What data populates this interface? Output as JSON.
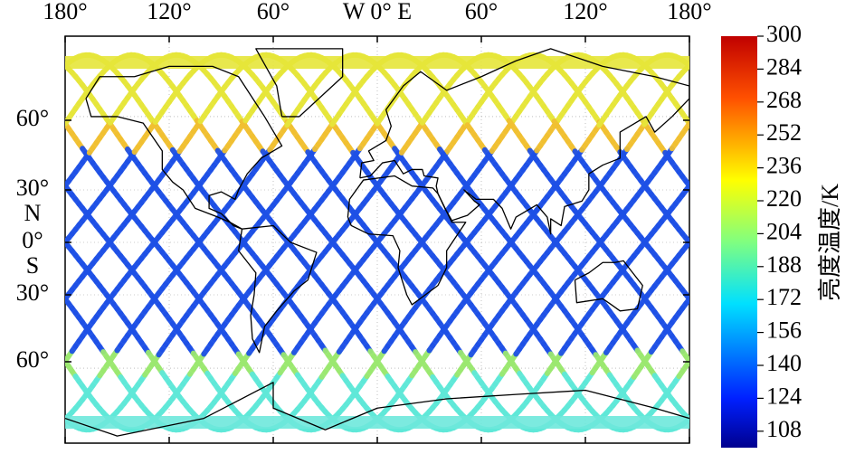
{
  "map": {
    "lon_labels": [
      "180°",
      "120°",
      "60°",
      "W 0° E",
      "60°",
      "120°",
      "180°"
    ],
    "lat_labels": [
      "60°",
      "30°",
      "N",
      "0°",
      "S",
      "30°",
      "60°"
    ]
  },
  "colorbar": {
    "label": "亮度温度/K",
    "range": [
      100,
      300
    ],
    "ticks": [
      300,
      284,
      268,
      252,
      236,
      220,
      204,
      188,
      172,
      156,
      140,
      124,
      108
    ]
  }
}
